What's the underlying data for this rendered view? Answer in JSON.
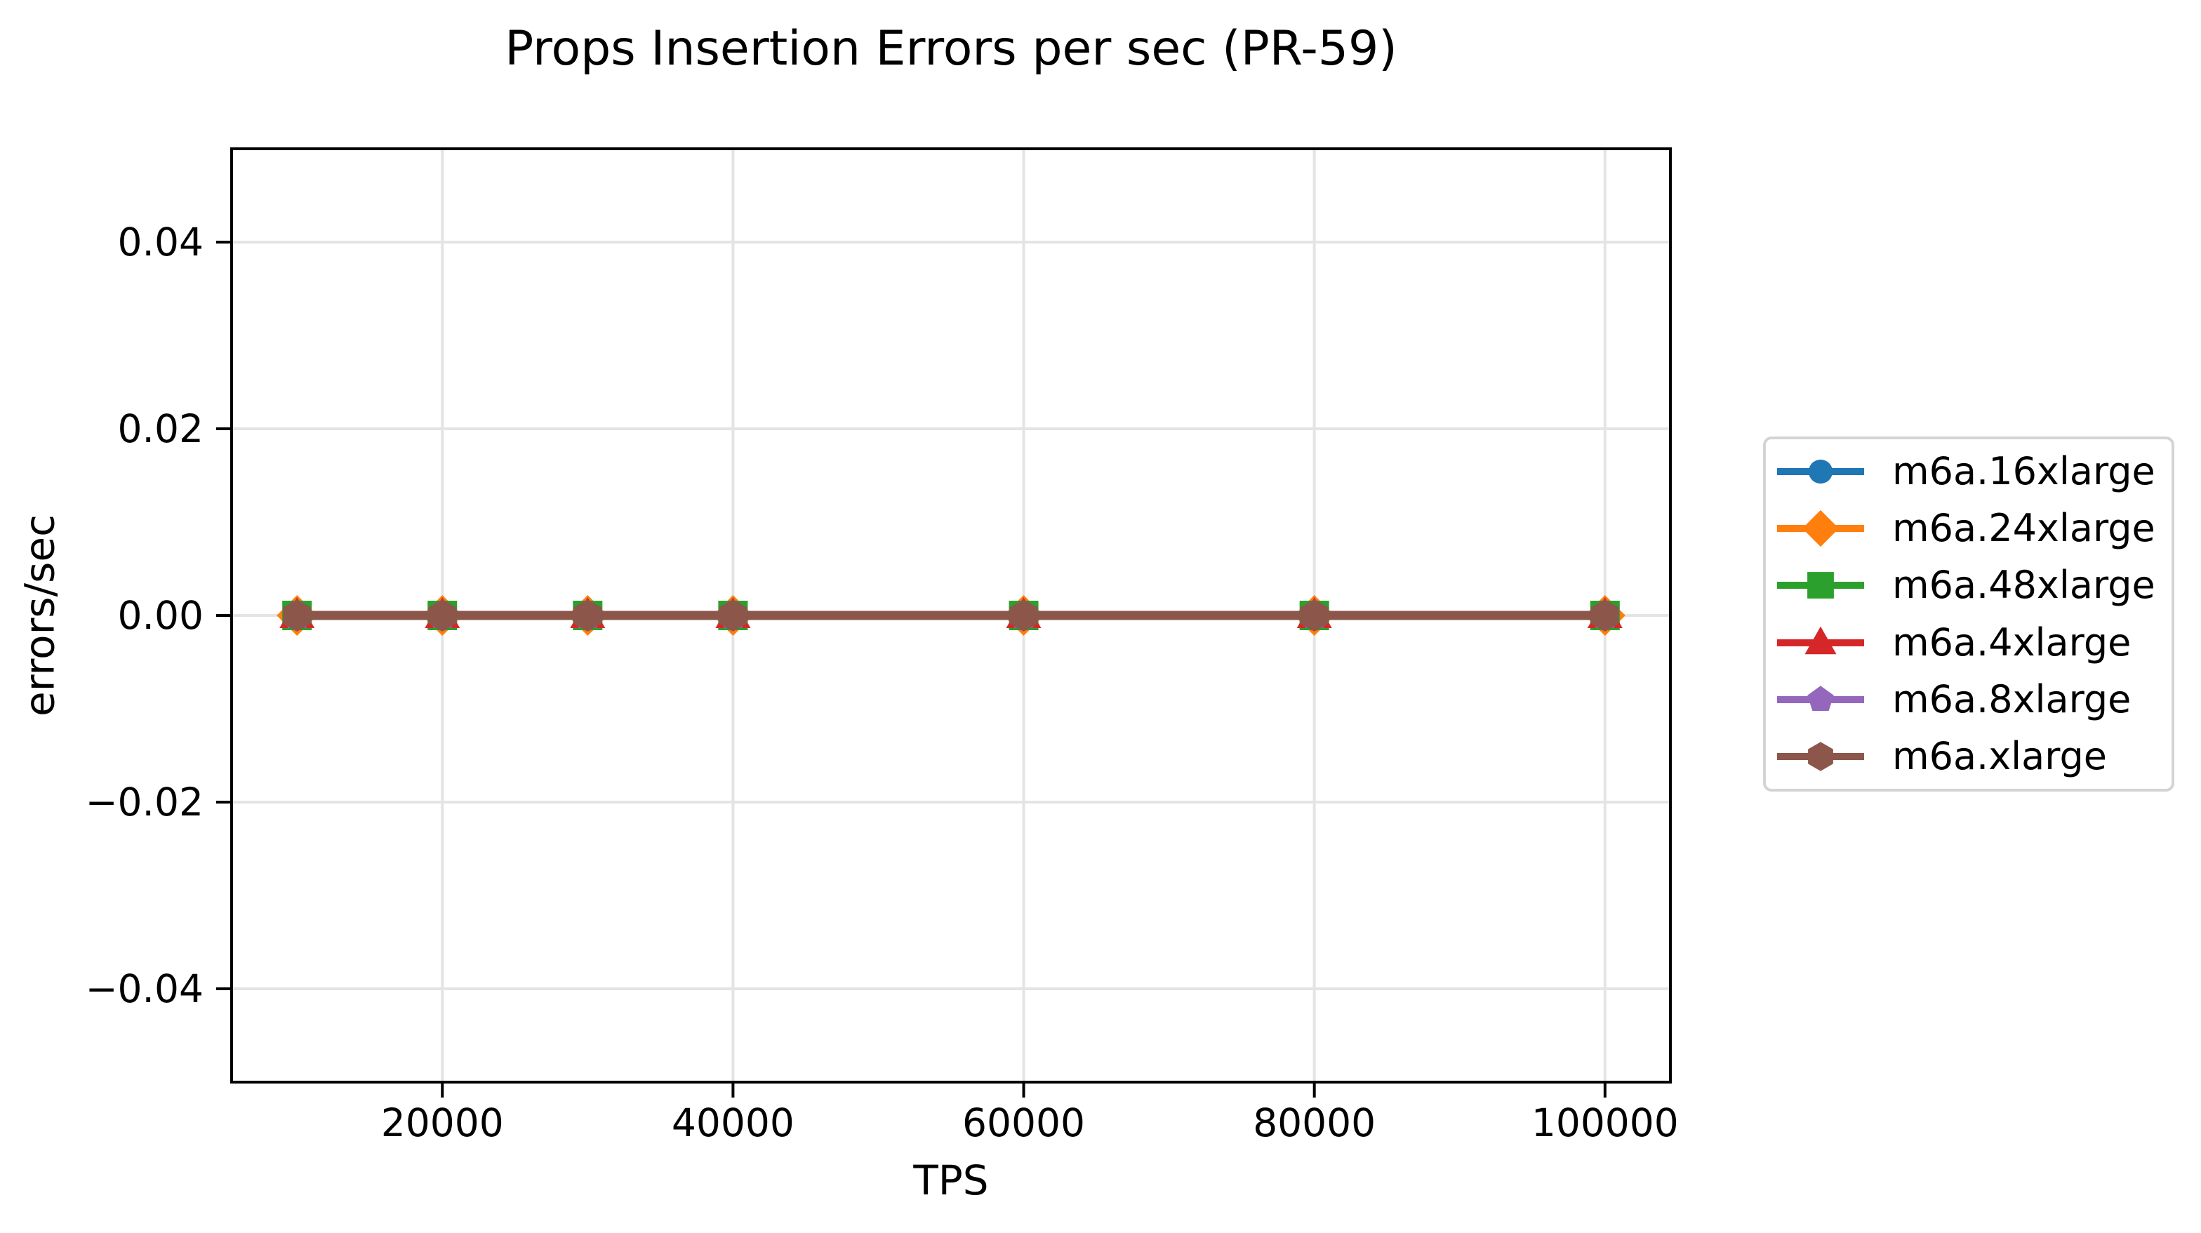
{
  "chart_data": {
    "type": "line",
    "title": "Props Insertion Errors per sec (PR-59)",
    "xlabel": "TPS",
    "ylabel": "errors/sec",
    "x": [
      10000,
      20000,
      30000,
      40000,
      60000,
      80000,
      100000
    ],
    "series": [
      {
        "name": "m6a.16xlarge",
        "color": "#1f77b4",
        "marker": "circle",
        "values": [
          0,
          0,
          0,
          0,
          0,
          0,
          0
        ]
      },
      {
        "name": "m6a.24xlarge",
        "color": "#ff7f0e",
        "marker": "diamond",
        "values": [
          0,
          0,
          0,
          0,
          0,
          0,
          0
        ]
      },
      {
        "name": "m6a.48xlarge",
        "color": "#2ca02c",
        "marker": "square",
        "values": [
          0,
          0,
          0,
          0,
          0,
          0,
          0
        ]
      },
      {
        "name": "m6a.4xlarge",
        "color": "#d62728",
        "marker": "triangle",
        "values": [
          0,
          0,
          0,
          0,
          0,
          0,
          0
        ]
      },
      {
        "name": "m6a.8xlarge",
        "color": "#9467bd",
        "marker": "pentagon",
        "values": [
          0,
          0,
          0,
          0,
          0,
          0,
          0
        ]
      },
      {
        "name": "m6a.xlarge",
        "color": "#8c564b",
        "marker": "hexagon",
        "values": [
          0,
          0,
          0,
          0,
          0,
          0,
          0
        ]
      }
    ],
    "xlim": [
      5500,
      104500
    ],
    "ylim": [
      -0.05,
      0.05
    ],
    "xticks": [
      20000,
      40000,
      60000,
      80000,
      100000
    ],
    "xtick_labels": [
      "20000",
      "40000",
      "60000",
      "80000",
      "100000"
    ],
    "yticks": [
      0.04,
      0.02,
      0.0,
      -0.02,
      -0.04
    ],
    "ytick_labels": [
      "0.04",
      "0.02",
      "0.00",
      "−0.02",
      "−0.04"
    ],
    "grid": true,
    "legend_position": "right"
  },
  "colors": {
    "background": "#ffffff",
    "grid": "#e4e4e4",
    "spine": "#000000",
    "legend_border": "#d4d4d4",
    "text": "#000000"
  }
}
